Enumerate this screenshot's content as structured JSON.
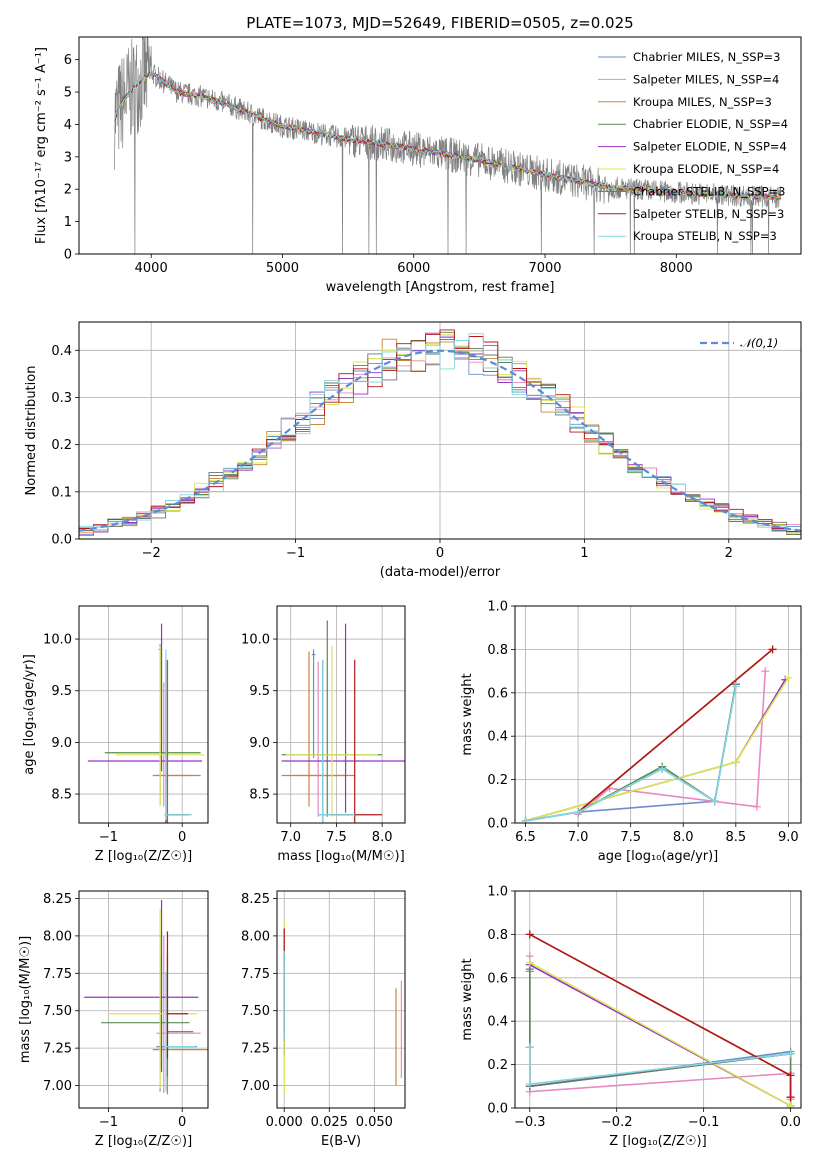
{
  "chart_data": [
    {
      "id": "spectrum",
      "type": "line",
      "title": "PLATE=1073, MJD=52649, FIBERID=0505, z=0.025",
      "xlabel": "wavelength [Angstrom, rest frame]",
      "ylabel": "Flux [fλ10⁻¹⁷ erg cm⁻² s⁻¹ A⁻¹]",
      "xlim": [
        3450,
        8950
      ],
      "ylim": [
        0,
        6.7
      ],
      "xticks": [
        4000,
        5000,
        6000,
        7000,
        8000
      ],
      "yticks": [
        0,
        1,
        2,
        3,
        4,
        5,
        6
      ],
      "grid": false,
      "legend_position": "top-right",
      "data_color": "#808080",
      "continuum": {
        "x": [
          3720,
          3800,
          3900,
          4000,
          4100,
          4200,
          4400,
          4600,
          4800,
          5000,
          5500,
          6000,
          6500,
          7000,
          7500,
          8000,
          8500,
          8800
        ],
        "y": [
          4.2,
          4.8,
          5.3,
          5.6,
          5.3,
          5.0,
          4.85,
          4.6,
          4.25,
          3.95,
          3.55,
          3.25,
          2.9,
          2.45,
          2.05,
          1.9,
          1.8,
          1.75
        ]
      },
      "series": [
        {
          "name": "Chabrier MILES, N_SSP=3",
          "color": "#6a8fc8"
        },
        {
          "name": "Salpeter MILES, N_SSP=4",
          "color": "#e889c0"
        },
        {
          "name": "Kroupa MILES, N_SSP=3",
          "color": "#c8853c"
        },
        {
          "name": "Chabrier ELODIE, N_SSP=4",
          "color": "#5a8a50"
        },
        {
          "name": "Salpeter ELODIE, N_SSP=4",
          "color": "#9b30c8"
        },
        {
          "name": "Kroupa ELODIE, N_SSP=4",
          "color": "#d8e850"
        },
        {
          "name": "Chabrier STELIB, N_SSP=3",
          "color": "#707070"
        },
        {
          "name": "Salpeter STELIB, N_SSP=3",
          "color": "#b01818"
        },
        {
          "name": "Kroupa STELIB, N_SSP=3",
          "color": "#80d8e0"
        }
      ]
    },
    {
      "id": "residuals",
      "type": "line",
      "xlabel": "(data-model)/error",
      "ylabel": "Normed distribution",
      "xlim": [
        -2.5,
        2.5
      ],
      "ylim": [
        0,
        0.46
      ],
      "xticks": [
        -2,
        -1,
        0,
        1,
        2
      ],
      "yticks": [
        0.0,
        0.1,
        0.2,
        0.3,
        0.4
      ],
      "grid": true,
      "legend_position": "top-right",
      "legend_label": "𝒩(0,1)",
      "normal_color": "#5b8bd8",
      "bin_width": 0.1
    },
    {
      "id": "age-z",
      "type": "scatter",
      "xlabel": "Z [log₁₀(Z/Z☉)]",
      "ylabel": "age  [log₁₀(age/yr)]",
      "xlim": [
        -1.4,
        0.35
      ],
      "ylim": [
        8.22,
        10.32
      ],
      "xticks": [
        -1,
        0
      ],
      "yticks": [
        8.5,
        9.0,
        9.5,
        10.0
      ],
      "grid": true,
      "points": [
        {
          "series": 0,
          "x": -0.3,
          "y": 9.9,
          "xerr": [
            0.02,
            0.02
          ],
          "yerr": [
            0.4,
            0.05
          ]
        },
        {
          "series": 1,
          "x": -0.25,
          "y": 8.68,
          "xerr": [
            0.1,
            0.35
          ],
          "yerr": [
            0.3,
            0.9
          ]
        },
        {
          "series": 2,
          "x": -0.2,
          "y": 8.68,
          "xerr": [
            0.2,
            0.45
          ],
          "yerr": [
            0.2,
            1.1
          ]
        },
        {
          "series": 3,
          "x": -0.3,
          "y": 8.9,
          "xerr": [
            0.75,
            0.55
          ],
          "yerr": [
            0.5,
            1.0
          ]
        },
        {
          "series": 4,
          "x": -0.28,
          "y": 8.82,
          "xerr": [
            1.0,
            0.55
          ],
          "yerr": [
            0.1,
            1.33
          ]
        },
        {
          "series": 5,
          "x": -0.3,
          "y": 8.88,
          "xerr": [
            0.6,
            0.6
          ],
          "yerr": [
            0.5,
            1.05
          ]
        },
        {
          "series": 6,
          "x": -0.2,
          "y": 8.3,
          "xerr": [
            0.02,
            0.3
          ],
          "yerr": [
            0.2,
            1.5
          ]
        },
        {
          "series": 7,
          "x": -0.22,
          "y": 8.3,
          "xerr": [
            0.02,
            0.28
          ],
          "yerr": [
            0.1,
            1.5
          ]
        },
        {
          "series": 8,
          "x": -0.22,
          "y": 8.3,
          "xerr": [
            0.02,
            0.35
          ],
          "yerr": [
            0.05,
            1.6
          ]
        }
      ]
    },
    {
      "id": "age-mass",
      "type": "scatter",
      "xlabel": "mass [log₁₀(M/M☉)]",
      "xlim": [
        6.85,
        8.25
      ],
      "ylim": [
        8.22,
        10.32
      ],
      "xticks": [
        7.0,
        7.5,
        8.0
      ],
      "yticks": [
        8.5,
        9.0,
        9.5,
        10.0
      ],
      "grid": true,
      "points": [
        {
          "series": 0,
          "x": 7.25,
          "y": 9.85,
          "xerr": [
            0.02,
            0.02
          ],
          "yerr": [
            1.0,
            0.05
          ]
        },
        {
          "series": 1,
          "x": 7.3,
          "y": 8.68,
          "xerr": [
            0.25,
            0.3
          ],
          "yerr": [
            0.4,
            1.1
          ]
        },
        {
          "series": 2,
          "x": 7.2,
          "y": 8.68,
          "xerr": [
            0.3,
            0.5
          ],
          "yerr": [
            0.3,
            1.2
          ]
        },
        {
          "series": 3,
          "x": 7.4,
          "y": 8.88,
          "xerr": [
            0.5,
            0.6
          ],
          "yerr": [
            0.6,
            1.3
          ]
        },
        {
          "series": 4,
          "x": 7.6,
          "y": 8.82,
          "xerr": [
            0.7,
            0.65
          ],
          "yerr": [
            0.5,
            1.33
          ]
        },
        {
          "series": 5,
          "x": 7.45,
          "y": 8.88,
          "xerr": [
            0.5,
            0.5
          ],
          "yerr": [
            0.6,
            1.05
          ]
        },
        {
          "series": 6,
          "x": 7.35,
          "y": 8.3,
          "xerr": [
            0.05,
            0.3
          ],
          "yerr": [
            0.1,
            1.5
          ]
        },
        {
          "series": 7,
          "x": 7.7,
          "y": 8.3,
          "xerr": [
            0.25,
            0.3
          ],
          "yerr": [
            0.1,
            1.5
          ]
        },
        {
          "series": 8,
          "x": 7.35,
          "y": 8.3,
          "xerr": [
            0.05,
            0.35
          ],
          "yerr": [
            0.1,
            1.5
          ]
        }
      ]
    },
    {
      "id": "weight-age",
      "type": "line",
      "xlabel": "age  [log₁₀(age/yr)]",
      "ylabel": "mass weight",
      "xlim": [
        6.4,
        9.12
      ],
      "ylim": [
        0,
        1.0
      ],
      "xticks": [
        6.5,
        7.0,
        7.5,
        8.0,
        8.5,
        9.0
      ],
      "yticks": [
        0.0,
        0.2,
        0.4,
        0.6,
        0.8,
        1.0
      ],
      "grid": true,
      "series": [
        {
          "series": 0,
          "x": [
            6.5,
            7.0,
            8.3,
            8.5
          ],
          "y": [
            0.01,
            0.05,
            0.1,
            0.64
          ]
        },
        {
          "series": 1,
          "x": [
            7.0,
            7.3,
            8.7,
            8.78
          ],
          "y": [
            0.04,
            0.16,
            0.075,
            0.7
          ]
        },
        {
          "series": 2,
          "x": [
            7.0,
            8.85
          ],
          "y": [
            0.05,
            0.8
          ]
        },
        {
          "series": 3,
          "x": [
            7.0,
            7.8,
            8.3,
            8.5
          ],
          "y": [
            0.05,
            0.26,
            0.1,
            0.64
          ]
        },
        {
          "series": 4,
          "x": [
            6.5,
            8.5,
            8.97
          ],
          "y": [
            0.01,
            0.28,
            0.66
          ]
        },
        {
          "series": 5,
          "x": [
            6.5,
            8.5,
            9.0
          ],
          "y": [
            0.01,
            0.28,
            0.67
          ]
        },
        {
          "series": 6,
          "x": [
            6.5,
            7.0,
            7.8,
            8.3,
            8.5
          ],
          "y": [
            0.01,
            0.05,
            0.25,
            0.1,
            0.64
          ]
        },
        {
          "series": 7,
          "x": [
            7.0,
            8.85
          ],
          "y": [
            0.05,
            0.8
          ]
        },
        {
          "series": 8,
          "x": [
            6.5,
            7.0,
            7.8,
            8.3,
            8.5
          ],
          "y": [
            0.01,
            0.05,
            0.25,
            0.1,
            0.63
          ]
        }
      ]
    },
    {
      "id": "mass-z",
      "type": "scatter",
      "xlabel": "Z [log₁₀(Z/Z☉)]",
      "ylabel": "mass [log₁₀(M/M☉)]",
      "xlim": [
        -1.4,
        0.35
      ],
      "ylim": [
        6.85,
        8.3
      ],
      "xticks": [
        -1,
        0
      ],
      "yticks": [
        7.0,
        7.25,
        7.5,
        7.75,
        8.0,
        8.25
      ],
      "grid": true,
      "points": [
        {
          "series": 0,
          "x": -0.3,
          "y": 7.26,
          "xerr": [
            0.05,
            0.5
          ],
          "yerr": [
            0.3,
            0.6
          ]
        },
        {
          "series": 1,
          "x": -0.25,
          "y": 7.35,
          "xerr": [
            0.1,
            0.5
          ],
          "yerr": [
            0.4,
            0.65
          ]
        },
        {
          "series": 2,
          "x": -0.2,
          "y": 7.24,
          "xerr": [
            0.2,
            0.6
          ],
          "yerr": [
            0.3,
            0.7
          ]
        },
        {
          "series": 3,
          "x": -0.3,
          "y": 7.42,
          "xerr": [
            0.8,
            0.4
          ],
          "yerr": [
            0.3,
            0.6
          ]
        },
        {
          "series": 4,
          "x": -0.28,
          "y": 7.59,
          "xerr": [
            1.05,
            0.5
          ],
          "yerr": [
            0.5,
            0.65
          ]
        },
        {
          "series": 5,
          "x": -0.3,
          "y": 7.48,
          "xerr": [
            0.7,
            0.5
          ],
          "yerr": [
            0.5,
            0.7
          ]
        },
        {
          "series": 6,
          "x": -0.2,
          "y": 7.36,
          "xerr": [
            0.02,
            0.35
          ],
          "yerr": [
            0.3,
            0.5
          ]
        },
        {
          "series": 7,
          "x": -0.2,
          "y": 7.48,
          "xerr": [
            0.02,
            0.28
          ],
          "yerr": [
            0.3,
            0.55
          ]
        },
        {
          "series": 8,
          "x": -0.22,
          "y": 7.26,
          "xerr": [
            0.02,
            0.4
          ],
          "yerr": [
            0.3,
            0.5
          ]
        }
      ]
    },
    {
      "id": "mass-ebv",
      "type": "scatter",
      "xlabel": "E(B-V)",
      "xlim": [
        -0.004,
        0.067
      ],
      "ylim": [
        6.85,
        8.3
      ],
      "xticks": [
        0.0,
        0.025,
        0.05
      ],
      "yticks": [
        7.0,
        7.25,
        7.5,
        7.75,
        8.0,
        8.25
      ],
      "grid": true,
      "points": [
        {
          "series": 0,
          "x": 0.0,
          "y": 7.6,
          "xerr": [
            0,
            0
          ],
          "yerr": [
            0.4,
            0.3
          ]
        },
        {
          "series": 1,
          "x": 0.065,
          "y": 7.35,
          "xerr": [
            0,
            0
          ],
          "yerr": [
            0.3,
            0.35
          ]
        },
        {
          "series": 2,
          "x": 0.062,
          "y": 7.3,
          "xerr": [
            0,
            0
          ],
          "yerr": [
            0.3,
            0.35
          ]
        },
        {
          "series": 3,
          "x": 0.0,
          "y": 7.5,
          "xerr": [
            0,
            0
          ],
          "yerr": [
            0.25,
            0.3
          ]
        },
        {
          "series": 4,
          "x": 0.0,
          "y": 7.6,
          "xerr": [
            0,
            0
          ],
          "yerr": [
            0.4,
            0.45
          ]
        },
        {
          "series": 5,
          "x": 0.0,
          "y": 7.6,
          "xerr": [
            0,
            0
          ],
          "yerr": [
            0.65,
            0.5
          ]
        },
        {
          "series": 6,
          "x": 0.0,
          "y": 7.6,
          "xerr": [
            0,
            0
          ],
          "yerr": [
            0.3,
            0.3
          ]
        },
        {
          "series": 7,
          "x": 0.0,
          "y": 7.65,
          "xerr": [
            0,
            0
          ],
          "yerr": [
            0.3,
            0.4
          ]
        },
        {
          "series": 8,
          "x": 0.0,
          "y": 7.6,
          "xerr": [
            0,
            0
          ],
          "yerr": [
            0.3,
            0.3
          ]
        }
      ]
    },
    {
      "id": "weight-z",
      "type": "line",
      "xlabel": "Z [log₁₀(Z/Z☉)]",
      "ylabel": "mass weight",
      "xlim": [
        -0.317,
        0.012
      ],
      "ylim": [
        0,
        1.0
      ],
      "xticks": [
        -0.3,
        -0.2,
        -0.1,
        0.0
      ],
      "yticks": [
        0.0,
        0.2,
        0.4,
        0.6,
        0.8,
        1.0
      ],
      "grid": true,
      "series": [
        {
          "series": 0,
          "x": [
            -0.3,
            -0.3,
            0.0,
            0.0
          ],
          "y": [
            0.63,
            0.1,
            0.26,
            0.25
          ]
        },
        {
          "series": 1,
          "x": [
            -0.3,
            -0.3,
            0.0,
            0.0
          ],
          "y": [
            0.7,
            0.075,
            0.16,
            0.04
          ]
        },
        {
          "series": 2,
          "x": [
            -0.3,
            0.0,
            0.0
          ],
          "y": [
            0.8,
            0.15,
            0.05
          ]
        },
        {
          "series": 3,
          "x": [
            -0.3,
            -0.3,
            0.0,
            0.0
          ],
          "y": [
            0.64,
            0.1,
            0.25,
            0.01
          ]
        },
        {
          "series": 4,
          "x": [
            -0.3,
            0.0,
            0.0
          ],
          "y": [
            0.66,
            0.01,
            0.0
          ]
        },
        {
          "series": 5,
          "x": [
            -0.3,
            0.0,
            0.0
          ],
          "y": [
            0.67,
            0.01,
            0.0
          ]
        },
        {
          "series": 6,
          "x": [
            -0.3,
            -0.3,
            0.0
          ],
          "y": [
            0.28,
            0.1,
            0.25
          ]
        },
        {
          "series": 7,
          "x": [
            -0.3,
            0.0,
            0.0
          ],
          "y": [
            0.8,
            0.15,
            0.05
          ]
        },
        {
          "series": 8,
          "x": [
            -0.3,
            -0.3,
            0.0
          ],
          "y": [
            0.28,
            0.11,
            0.25
          ]
        }
      ]
    }
  ]
}
